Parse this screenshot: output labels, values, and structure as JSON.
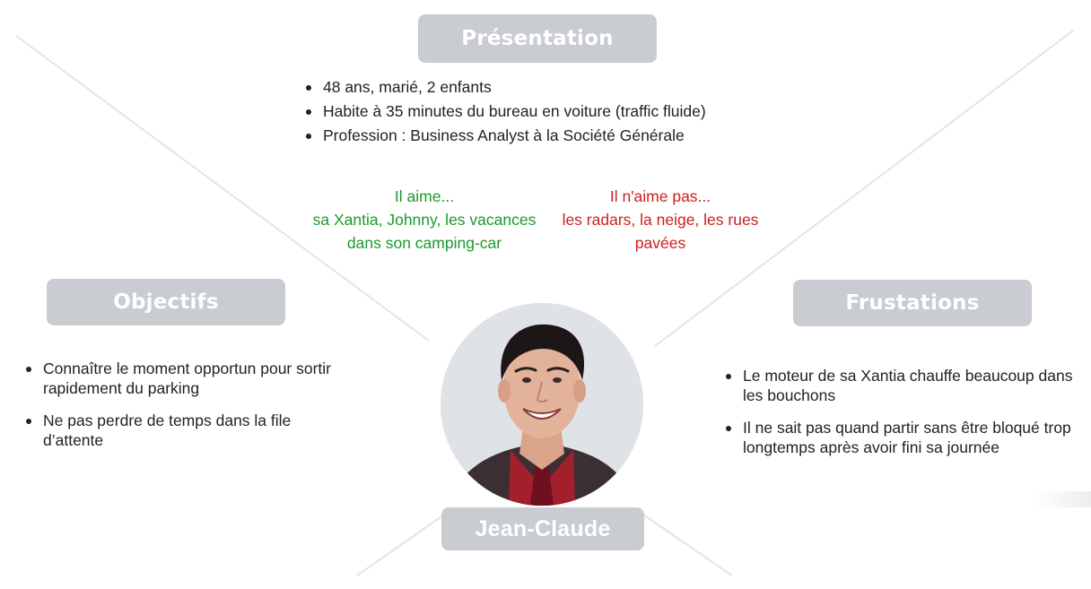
{
  "presentation": {
    "title": "Présentation",
    "items": [
      "48 ans, marié, 2 enfants",
      "Habite à 35 minutes du bureau en voiture (traffic fluide)",
      "Profession : Business Analyst à la Société Générale"
    ]
  },
  "likes": {
    "heading": "Il aime...",
    "line1": "sa Xantia, Johnny, les vacances",
    "line2": "dans son camping-car",
    "color": "#1a9a2e"
  },
  "dislikes": {
    "heading": "Il n'aime pas...",
    "line1": "les radars, la neige, les rues",
    "line2": "pavées",
    "color": "#cc1f1f"
  },
  "objectifs": {
    "title": "Objectifs",
    "items": [
      "Connaître le moment opportun pour sortir rapidement du parking",
      "Ne pas perdre de temps dans la file d’attente"
    ]
  },
  "frustations": {
    "title": "Frustations",
    "items": [
      "Le moteur de sa Xantia chauffe beaucoup dans les bouchons",
      "Il ne sait pas quand partir sans être bloqué trop longtemps après avoir fini sa journée"
    ]
  },
  "persona": {
    "name": "Jean-Claude"
  },
  "colors": {
    "pill_bg": "#c9ccd0",
    "pill_text": "#ffffff",
    "connector": "#e4e4e4"
  }
}
